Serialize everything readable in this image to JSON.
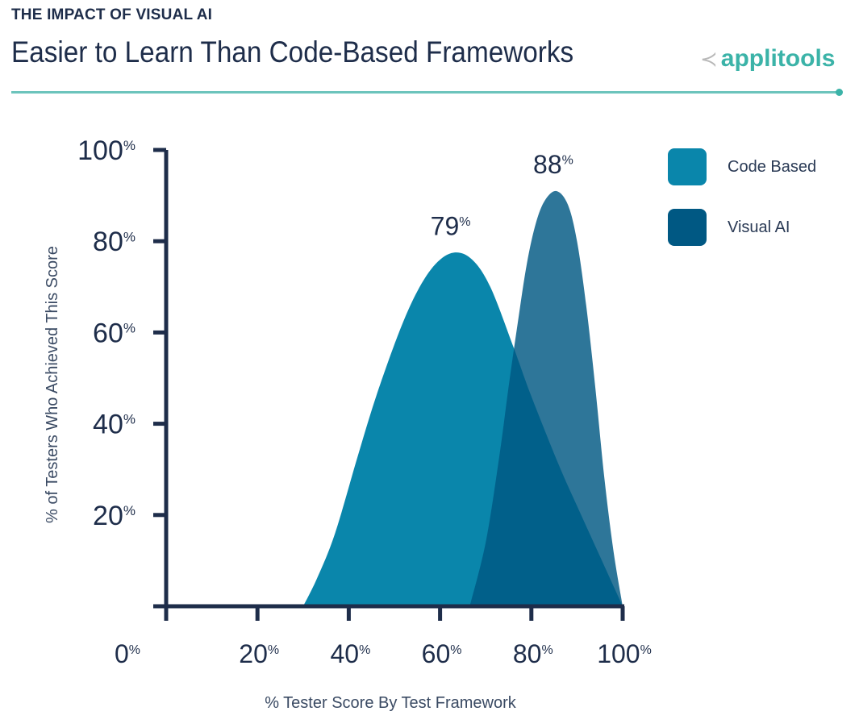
{
  "header": {
    "kicker": "THE IMPACT OF VISUAL AI",
    "title": "Easier to Learn Than Code-Based Frameworks",
    "logo_text": "applitools"
  },
  "chart_data": {
    "type": "area",
    "title": "Easier to Learn Than Code-Based Frameworks",
    "xlabel": "% Tester Score By Test Framework",
    "ylabel": "% of Testers Who Achieved This Score",
    "xlim": [
      0,
      100
    ],
    "ylim": [
      0,
      100
    ],
    "x_ticks": [
      "0%",
      "20%",
      "40%",
      "60%",
      "80%",
      "100%"
    ],
    "y_ticks": [
      "20%",
      "40%",
      "60%",
      "80%",
      "100%"
    ],
    "grid": false,
    "legend_position": "top-right",
    "series": [
      {
        "name": "Code Based",
        "color": "#0a86ab",
        "peak_label": "79%",
        "points": [
          [
            30,
            0
          ],
          [
            33,
            6
          ],
          [
            37,
            16
          ],
          [
            42,
            33
          ],
          [
            46,
            46
          ],
          [
            51,
            60
          ],
          [
            55,
            69
          ],
          [
            59,
            75
          ],
          [
            63,
            77.5
          ],
          [
            67,
            76
          ],
          [
            71,
            70
          ],
          [
            76,
            57
          ],
          [
            80,
            46
          ],
          [
            86,
            31
          ],
          [
            90,
            22
          ],
          [
            95,
            11
          ],
          [
            100,
            0
          ]
        ]
      },
      {
        "name": "Visual AI",
        "color": "#005883",
        "peak_label": "88%",
        "points": [
          [
            66.5,
            0
          ],
          [
            70,
            14
          ],
          [
            73,
            33
          ],
          [
            75,
            48
          ],
          [
            77,
            62
          ],
          [
            79,
            75
          ],
          [
            81,
            84
          ],
          [
            83,
            89
          ],
          [
            85.5,
            91
          ],
          [
            88,
            88
          ],
          [
            90,
            80
          ],
          [
            92,
            66
          ],
          [
            94,
            48
          ],
          [
            96,
            28
          ],
          [
            98,
            12
          ],
          [
            100,
            0
          ]
        ]
      }
    ]
  }
}
